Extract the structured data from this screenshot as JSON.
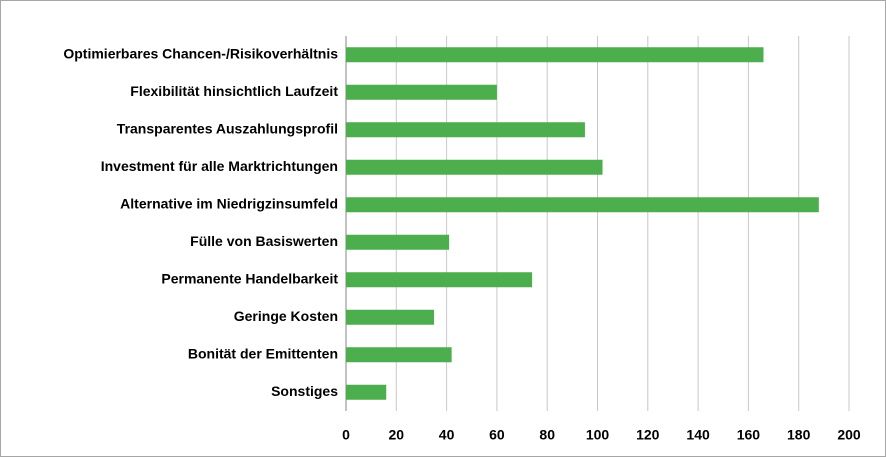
{
  "chart_data": {
    "type": "bar",
    "orientation": "horizontal",
    "categories": [
      "Optimierbares Chancen-/Risikoverhältnis",
      "Flexibilität hinsichtlich Laufzeit",
      "Transparentes Auszahlungsprofil",
      "Investment für alle Marktrichtungen",
      "Alternative im Niedrigzinsumfeld",
      "Fülle von Basiswerten",
      "Permanente Handelbarkeit",
      "Geringe Kosten",
      "Bonität der Emittenten",
      "Sonstiges"
    ],
    "values": [
      166,
      60,
      95,
      102,
      188,
      41,
      74,
      35,
      42,
      16
    ],
    "color": "#4cae4c",
    "xlim": [
      0,
      200
    ],
    "xticks": [
      0,
      20,
      40,
      60,
      80,
      100,
      120,
      140,
      160,
      180,
      200
    ],
    "grid": true
  }
}
